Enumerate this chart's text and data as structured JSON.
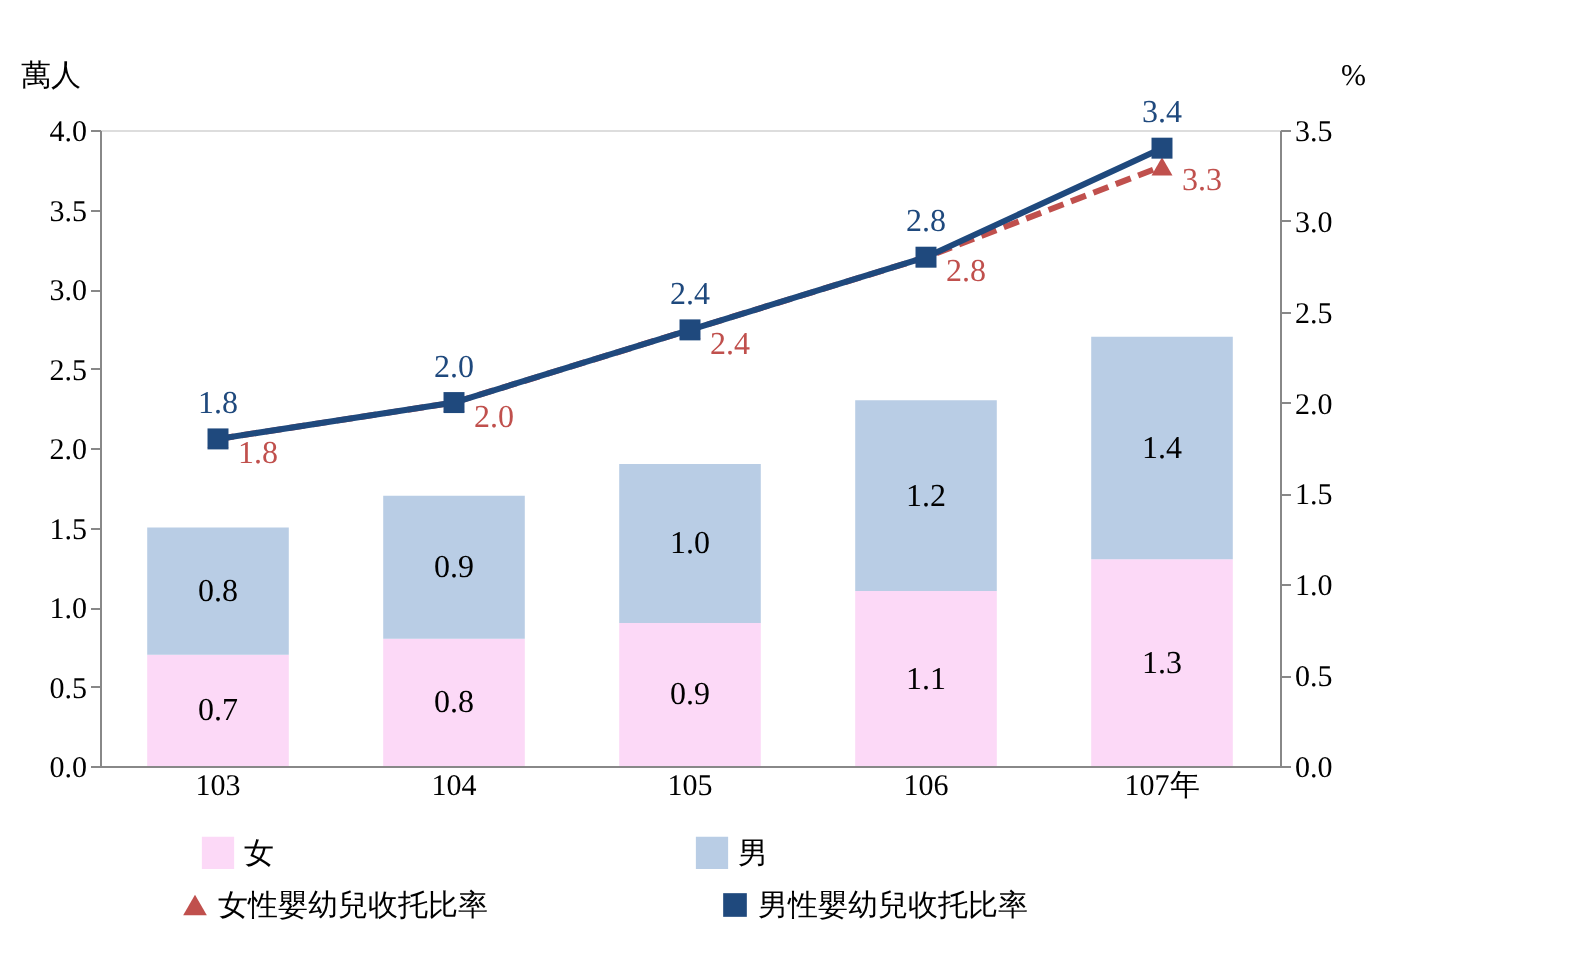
{
  "chart_data": {
    "type": "bar",
    "stacked": true,
    "categories": [
      "103",
      "104",
      "105",
      "106",
      "107年"
    ],
    "ylabel": "萬人",
    "y2label": "%",
    "ylim": [
      0,
      4
    ],
    "yticks": [
      {
        "value": 0,
        "label": "0.0"
      },
      {
        "value": 0.5,
        "label": "0.5"
      },
      {
        "value": 1,
        "label": "1.0"
      },
      {
        "value": 1.5,
        "label": "1.5"
      },
      {
        "value": 2,
        "label": "2.0"
      },
      {
        "value": 2.5,
        "label": "2.5"
      },
      {
        "value": 3,
        "label": "3.0"
      },
      {
        "value": 3.5,
        "label": "3.5"
      },
      {
        "value": 4,
        "label": "4.0"
      }
    ],
    "y2lim": [
      0,
      3.5
    ],
    "y2ticks": [
      {
        "value": 0,
        "label": "0.0"
      },
      {
        "value": 0.5,
        "label": "0.5"
      },
      {
        "value": 1,
        "label": "1.0"
      },
      {
        "value": 1.5,
        "label": "1.5"
      },
      {
        "value": 2,
        "label": "2.0"
      },
      {
        "value": 2.5,
        "label": "2.5"
      },
      {
        "value": 3,
        "label": "3.0"
      },
      {
        "value": 3.5,
        "label": "3.5"
      }
    ],
    "legend": "bottom",
    "series": [
      {
        "name": "女",
        "color": "#fcd9f7",
        "values": [
          0.7,
          0.8,
          0.9,
          1.1,
          1.3
        ],
        "value_labels": [
          "0.7",
          "0.8",
          "0.9",
          "1.1",
          "1.3"
        ]
      },
      {
        "name": "男",
        "color": "#b9cde5",
        "values": [
          0.8,
          0.9,
          1.0,
          1.2,
          1.4
        ],
        "value_labels": [
          "0.8",
          "0.9",
          "1.0",
          "1.2",
          "1.4"
        ]
      },
      {
        "name": "女性嬰幼兒收托比率",
        "type": "line",
        "axis": "y2",
        "color": "#c0504d",
        "line_style": "dashed",
        "marker": "triangle",
        "values": [
          1.8,
          2.0,
          2.4,
          2.8,
          3.3
        ],
        "value_labels": [
          "1.8",
          "2.0",
          "2.4",
          "2.8",
          "3.3"
        ]
      },
      {
        "name": "男性嬰幼兒收托比率",
        "type": "line",
        "axis": "y2",
        "color": "#1f497d",
        "line_style": "solid",
        "marker": "square",
        "values": [
          1.8,
          2.0,
          2.4,
          2.8,
          3.4
        ],
        "value_labels": [
          "1.8",
          "2.0",
          "2.4",
          "2.8",
          "3.4"
        ]
      }
    ]
  }
}
